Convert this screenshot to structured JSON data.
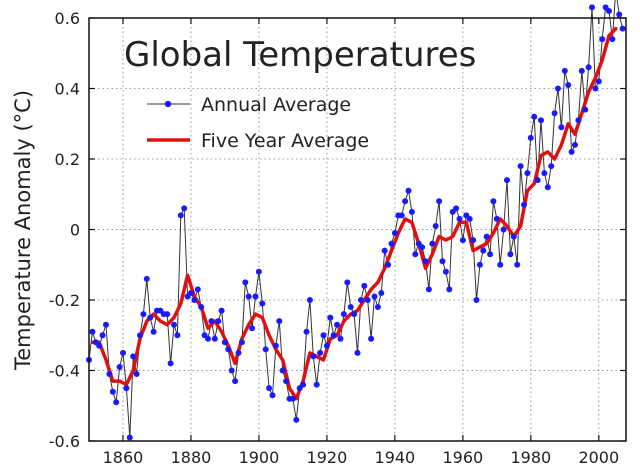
{
  "chart_data": {
    "type": "line",
    "title": "Global Temperatures",
    "xlabel": "",
    "ylabel": "Temperature Anomaly (°C)",
    "xlim": [
      1850,
      2008
    ],
    "ylim": [
      -0.6,
      0.6
    ],
    "xticks": [
      1860,
      1880,
      1900,
      1920,
      1940,
      1960,
      1980,
      2000
    ],
    "yticks": [
      -0.6,
      -0.4,
      -0.2,
      0,
      0.2,
      0.4,
      0.6
    ],
    "xtick_labels": [
      "1860",
      "1880",
      "1900",
      "1920",
      "1940",
      "1960",
      "1980",
      "2000"
    ],
    "ytick_labels": [
      "-0.6",
      "-0.4",
      "-0.2",
      "0",
      "0.2",
      "0.4",
      "0.6"
    ],
    "grid": true,
    "legend_position": "top-left",
    "colors": {
      "annual_line": "#333333",
      "annual_marker": "#1a1aff",
      "five_year": "#e01010"
    },
    "series": [
      {
        "name": "Annual Average",
        "style": "line-with-markers",
        "x": [
          1850,
          1851,
          1852,
          1853,
          1854,
          1855,
          1856,
          1857,
          1858,
          1859,
          1860,
          1861,
          1862,
          1863,
          1864,
          1865,
          1866,
          1867,
          1868,
          1869,
          1870,
          1871,
          1872,
          1873,
          1874,
          1875,
          1876,
          1877,
          1878,
          1879,
          1880,
          1881,
          1882,
          1883,
          1884,
          1885,
          1886,
          1887,
          1888,
          1889,
          1890,
          1891,
          1892,
          1893,
          1894,
          1895,
          1896,
          1897,
          1898,
          1899,
          1900,
          1901,
          1902,
          1903,
          1904,
          1905,
          1906,
          1907,
          1908,
          1909,
          1910,
          1911,
          1912,
          1913,
          1914,
          1915,
          1916,
          1917,
          1918,
          1919,
          1920,
          1921,
          1922,
          1923,
          1924,
          1925,
          1926,
          1927,
          1928,
          1929,
          1930,
          1931,
          1932,
          1933,
          1934,
          1935,
          1936,
          1937,
          1938,
          1939,
          1940,
          1941,
          1942,
          1943,
          1944,
          1945,
          1946,
          1947,
          1948,
          1949,
          1950,
          1951,
          1952,
          1953,
          1954,
          1955,
          1956,
          1957,
          1958,
          1959,
          1960,
          1961,
          1962,
          1963,
          1964,
          1965,
          1966,
          1967,
          1968,
          1969,
          1970,
          1971,
          1972,
          1973,
          1974,
          1975,
          1976,
          1977,
          1978,
          1979,
          1980,
          1981,
          1982,
          1983,
          1984,
          1985,
          1986,
          1987,
          1988,
          1989,
          1990,
          1991,
          1992,
          1993,
          1994,
          1995,
          1996,
          1997,
          1998,
          1999,
          2000,
          2001,
          2002,
          2003,
          2004,
          2005,
          2006,
          2007
        ],
        "values": [
          -0.37,
          -0.29,
          -0.32,
          -0.33,
          -0.3,
          -0.27,
          -0.41,
          -0.46,
          -0.49,
          -0.39,
          -0.35,
          -0.45,
          -0.59,
          -0.36,
          -0.41,
          -0.3,
          -0.24,
          -0.14,
          -0.25,
          -0.29,
          -0.23,
          -0.23,
          -0.24,
          -0.24,
          -0.38,
          -0.27,
          -0.3,
          0.04,
          0.06,
          -0.19,
          -0.18,
          -0.2,
          -0.17,
          -0.22,
          -0.3,
          -0.31,
          -0.26,
          -0.31,
          -0.26,
          -0.23,
          -0.32,
          -0.34,
          -0.4,
          -0.43,
          -0.35,
          -0.32,
          -0.15,
          -0.19,
          -0.28,
          -0.19,
          -0.12,
          -0.21,
          -0.34,
          -0.45,
          -0.47,
          -0.33,
          -0.26,
          -0.4,
          -0.43,
          -0.48,
          -0.48,
          -0.54,
          -0.45,
          -0.44,
          -0.29,
          -0.2,
          -0.36,
          -0.44,
          -0.35,
          -0.3,
          -0.33,
          -0.25,
          -0.3,
          -0.27,
          -0.31,
          -0.24,
          -0.15,
          -0.22,
          -0.24,
          -0.35,
          -0.2,
          -0.16,
          -0.2,
          -0.31,
          -0.19,
          -0.22,
          -0.18,
          -0.06,
          -0.1,
          -0.04,
          -0.01,
          0.04,
          0.04,
          0.08,
          0.11,
          0.05,
          -0.07,
          -0.04,
          -0.05,
          -0.09,
          -0.17,
          -0.04,
          0.01,
          0.08,
          -0.09,
          -0.12,
          -0.17,
          0.05,
          0.06,
          0.03,
          -0.03,
          0.04,
          0.03,
          -0.03,
          -0.2,
          -0.1,
          -0.06,
          -0.02,
          -0.07,
          0.08,
          0.03,
          -0.1,
          0.0,
          0.14,
          -0.07,
          -0.02,
          -0.1,
          0.18,
          0.07,
          0.16,
          0.26,
          0.32,
          0.14,
          0.31,
          0.16,
          0.12,
          0.18,
          0.33,
          0.4,
          0.29,
          0.45,
          0.41,
          0.22,
          0.24,
          0.31,
          0.45,
          0.34,
          0.46,
          0.63,
          0.4,
          0.42,
          0.54,
          0.63,
          0.62,
          0.54,
          0.68,
          0.61,
          0.57
        ],
        "color": "#1a1aff"
      },
      {
        "name": "Five Year Average",
        "style": "thick-line",
        "x": [
          1851,
          1853,
          1855,
          1857,
          1859,
          1861,
          1863,
          1865,
          1867,
          1869,
          1871,
          1873,
          1875,
          1877,
          1879,
          1881,
          1883,
          1885,
          1887,
          1889,
          1891,
          1893,
          1895,
          1897,
          1899,
          1901,
          1903,
          1905,
          1907,
          1909,
          1911,
          1913,
          1915,
          1917,
          1919,
          1921,
          1923,
          1925,
          1927,
          1929,
          1931,
          1933,
          1935,
          1937,
          1939,
          1941,
          1943,
          1945,
          1947,
          1949,
          1951,
          1953,
          1955,
          1957,
          1959,
          1961,
          1963,
          1965,
          1967,
          1969,
          1971,
          1973,
          1975,
          1977,
          1979,
          1981,
          1983,
          1985,
          1987,
          1989,
          1991,
          1993,
          1995,
          1997,
          1999,
          2001,
          2003,
          2005
        ],
        "values": [
          -0.32,
          -0.32,
          -0.37,
          -0.43,
          -0.43,
          -0.44,
          -0.4,
          -0.31,
          -0.26,
          -0.24,
          -0.26,
          -0.27,
          -0.25,
          -0.21,
          -0.13,
          -0.19,
          -0.22,
          -0.28,
          -0.26,
          -0.29,
          -0.33,
          -0.38,
          -0.31,
          -0.27,
          -0.24,
          -0.25,
          -0.3,
          -0.34,
          -0.37,
          -0.45,
          -0.48,
          -0.43,
          -0.35,
          -0.36,
          -0.37,
          -0.31,
          -0.3,
          -0.26,
          -0.24,
          -0.23,
          -0.2,
          -0.17,
          -0.15,
          -0.11,
          -0.06,
          -0.01,
          0.03,
          0.02,
          -0.04,
          -0.11,
          -0.07,
          -0.02,
          -0.03,
          -0.02,
          0.02,
          0.02,
          -0.06,
          -0.05,
          -0.04,
          -0.01,
          0.03,
          0.01,
          -0.02,
          0.01,
          0.11,
          0.13,
          0.21,
          0.22,
          0.2,
          0.24,
          0.3,
          0.27,
          0.33,
          0.39,
          0.43,
          0.48,
          0.55,
          0.57
        ],
        "color": "#e01010"
      }
    ]
  }
}
